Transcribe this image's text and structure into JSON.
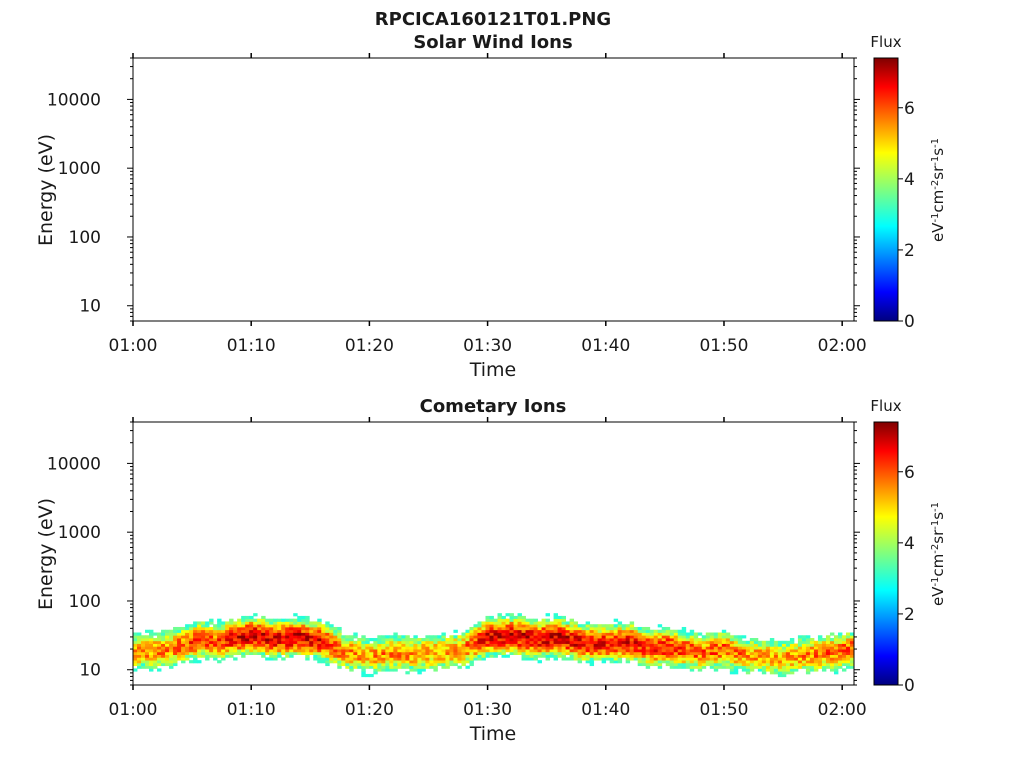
{
  "figure": {
    "title": "RPCICA160121T01.PNG"
  },
  "chart_data": [
    {
      "type": "heatmap",
      "title": "Solar Wind Ions",
      "xlabel": "Time",
      "ylabel": "Energy (eV)",
      "x_ticks": [
        "01:00",
        "01:10",
        "01:20",
        "01:30",
        "01:40",
        "01:50",
        "02:00"
      ],
      "x_range_minutes": [
        0,
        61
      ],
      "y_scale": "log",
      "y_ticks": [
        "10",
        "100",
        "1000",
        "10000"
      ],
      "y_range": [
        6,
        40000
      ],
      "colorbar": {
        "title": "Flux",
        "label": "eV-1cm-2sr-1s-1",
        "ticks": [
          "0",
          "2",
          "4",
          "6"
        ],
        "range": [
          0,
          7.4
        ],
        "colormap": "jet"
      },
      "flux_band": null
    },
    {
      "type": "heatmap",
      "title": "Cometary Ions",
      "xlabel": "Time",
      "ylabel": "Energy (eV)",
      "x_ticks": [
        "01:00",
        "01:10",
        "01:20",
        "01:30",
        "01:40",
        "01:50",
        "02:00"
      ],
      "x_range_minutes": [
        0,
        61
      ],
      "y_scale": "log",
      "y_ticks": [
        "10",
        "100",
        "1000",
        "10000"
      ],
      "y_range": [
        6,
        40000
      ],
      "colorbar": {
        "title": "Flux",
        "label": "eV-1cm-2sr-1s-1",
        "ticks": [
          "0",
          "2",
          "4",
          "6"
        ],
        "range": [
          0,
          7.4
        ],
        "colormap": "jet"
      },
      "flux_band": {
        "energy_min": 6,
        "energy_max": 80,
        "time_minutes": [
          0,
          3,
          6,
          7,
          9,
          10,
          12,
          14,
          16,
          18,
          20,
          22,
          24,
          26,
          28,
          30,
          32,
          34,
          36,
          38,
          40,
          42,
          44,
          45,
          48,
          50,
          52,
          55,
          58,
          61
        ],
        "peak_flux": [
          5.4,
          5.6,
          6.2,
          5.8,
          6.8,
          6.9,
          6.6,
          6.8,
          6.5,
          5.6,
          5.3,
          5.6,
          5.4,
          5.3,
          5.5,
          6.6,
          6.8,
          6.7,
          6.9,
          6.6,
          6.4,
          6.5,
          6.1,
          6.4,
          5.8,
          5.9,
          5.4,
          5.3,
          5.6,
          6.0
        ],
        "peak_energy": [
          18,
          20,
          28,
          25,
          30,
          32,
          28,
          30,
          26,
          18,
          16,
          18,
          17,
          18,
          20,
          30,
          32,
          28,
          30,
          25,
          24,
          26,
          20,
          22,
          18,
          20,
          16,
          15,
          17,
          20
        ]
      }
    }
  ]
}
